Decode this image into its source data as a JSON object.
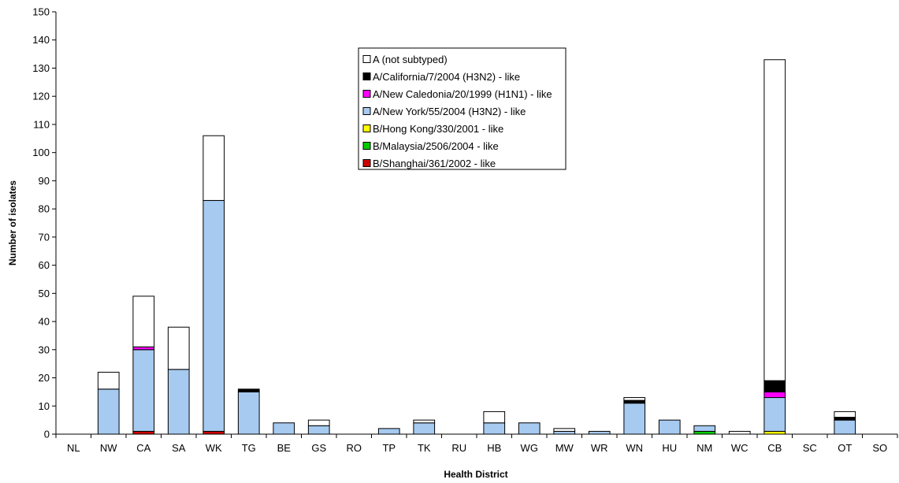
{
  "chart_data": {
    "type": "bar",
    "stacked": true,
    "title": "",
    "xlabel": "Health District",
    "ylabel": "Number of isolates",
    "ylim": [
      0,
      150
    ],
    "ytick_step": 10,
    "grid": false,
    "legend_placement": "top-center",
    "categories": [
      "NL",
      "NW",
      "CA",
      "SA",
      "WK",
      "TG",
      "BE",
      "GS",
      "RO",
      "TP",
      "TK",
      "RU",
      "HB",
      "WG",
      "MW",
      "WR",
      "WN",
      "HU",
      "NM",
      "WC",
      "CB",
      "SC",
      "OT",
      "SO"
    ],
    "series": [
      {
        "name": "B/Shanghai/361/2002 - like",
        "color": "#cc0000",
        "values": [
          0,
          0,
          1,
          0,
          1,
          0,
          0,
          0,
          0,
          0,
          0,
          0,
          0,
          0,
          0,
          0,
          0,
          0,
          0,
          0,
          0,
          0,
          0,
          0
        ]
      },
      {
        "name": "B/Malaysia/2506/2004 - like",
        "color": "#00cc00",
        "values": [
          0,
          0,
          0,
          0,
          0,
          0,
          0,
          0,
          0,
          0,
          0,
          0,
          0,
          0,
          0,
          0,
          0,
          0,
          1,
          0,
          0,
          0,
          0,
          0
        ]
      },
      {
        "name": "B/Hong Kong/330/2001 - like",
        "color": "#ffff00",
        "values": [
          0,
          0,
          0,
          0,
          0,
          0,
          0,
          0,
          0,
          0,
          0,
          0,
          0,
          0,
          0,
          0,
          0,
          0,
          0,
          0,
          1,
          0,
          0,
          0
        ]
      },
      {
        "name": "A/New York/55/2004 (H3N2) - like",
        "color": "#a6caf0",
        "values": [
          0,
          16,
          29,
          23,
          82,
          15,
          4,
          3,
          0,
          2,
          4,
          0,
          4,
          4,
          1,
          1,
          11,
          5,
          2,
          0,
          12,
          0,
          5,
          0
        ]
      },
      {
        "name": "A/New Caledonia/20/1999 (H1N1) - like",
        "color": "#ff00ff",
        "values": [
          0,
          0,
          1,
          0,
          0,
          0,
          0,
          0,
          0,
          0,
          0,
          0,
          0,
          0,
          0,
          0,
          0,
          0,
          0,
          0,
          2,
          0,
          0,
          0
        ]
      },
      {
        "name": "A/California/7/2004 (H3N2) - like",
        "color": "#000000",
        "values": [
          0,
          0,
          0,
          0,
          0,
          1,
          0,
          0,
          0,
          0,
          0,
          0,
          0,
          0,
          0,
          0,
          1,
          0,
          0,
          0,
          4,
          0,
          1,
          0
        ]
      },
      {
        "name": "A (not subtyped)",
        "color": "#ffffff",
        "values": [
          0,
          6,
          18,
          15,
          23,
          0,
          0,
          2,
          0,
          0,
          1,
          0,
          4,
          0,
          1,
          0,
          1,
          0,
          0,
          1,
          114,
          0,
          2,
          0
        ]
      }
    ],
    "legend_order": [
      "A (not subtyped)",
      "A/California/7/2004 (H3N2) - like",
      "A/New Caledonia/20/1999 (H1N1) - like",
      "A/New York/55/2004 (H3N2) - like",
      "B/Hong Kong/330/2001 - like",
      "B/Malaysia/2506/2004 - like",
      "B/Shanghai/361/2002 - like"
    ]
  }
}
